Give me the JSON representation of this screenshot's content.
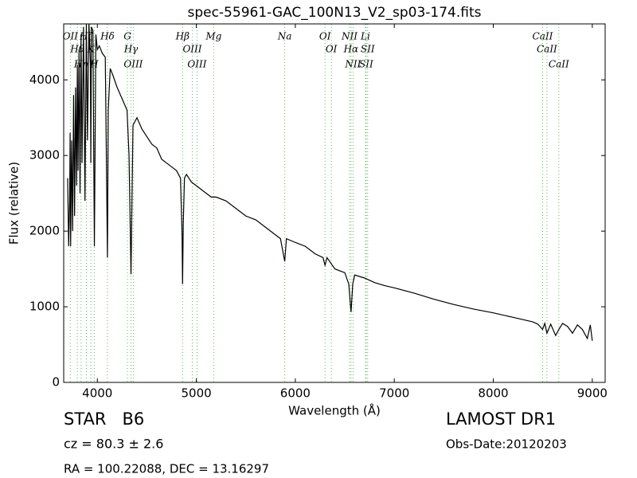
{
  "chart_data": {
    "type": "line",
    "title": "spec-55961-GAC_100N13_V2_sp03-174.fits",
    "x_label": "Wavelength (Å)",
    "y_label": "Flux (relative)",
    "xlim": [
      3660,
      9130
    ],
    "ylim": [
      0,
      4740
    ],
    "xticks": [
      4000,
      5000,
      6000,
      7000,
      8000,
      9000
    ],
    "yticks": [
      0,
      1000,
      2000,
      3000,
      4000
    ],
    "grid": false,
    "series": [
      {
        "color": "#000000",
        "x": [
          3700,
          3710,
          3720,
          3725,
          3730,
          3735,
          3740,
          3750,
          3760,
          3770,
          3780,
          3790,
          3798,
          3805,
          3815,
          3825,
          3835,
          3845,
          3860,
          3875,
          3889,
          3900,
          3915,
          3930,
          3934,
          3940,
          3955,
          3970,
          3985,
          4000,
          4020,
          4050,
          4080,
          4095,
          4102,
          4110,
          4130,
          4160,
          4200,
          4250,
          4300,
          4320,
          4340,
          4360,
          4400,
          4450,
          4500,
          4550,
          4600,
          4650,
          4700,
          4750,
          4800,
          4840,
          4855,
          4861,
          4868,
          4880,
          4900,
          4950,
          5000,
          5050,
          5100,
          5150,
          5200,
          5300,
          5400,
          5500,
          5600,
          5700,
          5800,
          5850,
          5893,
          5910,
          6000,
          6100,
          6200,
          6280,
          6300,
          6320,
          6400,
          6500,
          6540,
          6563,
          6580,
          6600,
          6700,
          6800,
          6900,
          7000,
          7200,
          7400,
          7600,
          7800,
          8000,
          8200,
          8400,
          8450,
          8498,
          8520,
          8542,
          8580,
          8630,
          8662,
          8700,
          8750,
          8800,
          8850,
          8900,
          8950,
          8980,
          9000
        ],
        "values": [
          2700,
          1800,
          2400,
          3300,
          1800,
          2500,
          3200,
          2000,
          3800,
          2200,
          3900,
          2600,
          4200,
          2800,
          4400,
          2500,
          4600,
          2900,
          4700,
          2400,
          4750,
          3200,
          4750,
          4200,
          2900,
          4700,
          4650,
          1800,
          4600,
          4400,
          4450,
          4350,
          4300,
          2500,
          1650,
          3600,
          4150,
          4050,
          3900,
          3750,
          3600,
          3000,
          1430,
          3400,
          3500,
          3350,
          3250,
          3150,
          3100,
          2950,
          2900,
          2850,
          2800,
          2700,
          2000,
          1300,
          2100,
          2700,
          2750,
          2650,
          2600,
          2550,
          2500,
          2450,
          2450,
          2400,
          2300,
          2200,
          2150,
          2050,
          1950,
          1900,
          1600,
          1900,
          1850,
          1800,
          1700,
          1650,
          1550,
          1650,
          1500,
          1450,
          1300,
          930,
          1300,
          1420,
          1380,
          1320,
          1280,
          1250,
          1180,
          1100,
          1030,
          970,
          920,
          860,
          800,
          770,
          700,
          780,
          650,
          770,
          620,
          700,
          780,
          740,
          650,
          760,
          700,
          580,
          760,
          550
        ]
      }
    ],
    "line_marker_color": "#5cb85c",
    "line_markers": [
      {
        "label": "OII",
        "x": 3727
      },
      {
        "label": "Hθ",
        "x": 3798
      },
      {
        "label": "Hη",
        "x": 3835
      },
      {
        "label": "Hζ",
        "x": 3889
      },
      {
        "label": "K",
        "x": 3934
      },
      {
        "label": "H",
        "x": 3969
      },
      {
        "label": "Hδ",
        "x": 4102
      },
      {
        "label": "G",
        "x": 4304
      },
      {
        "label": "Hγ",
        "x": 4340
      },
      {
        "label": "OIII",
        "x": 4363
      },
      {
        "label": "Hβ",
        "x": 4861
      },
      {
        "label": "OIII",
        "x": 4959
      },
      {
        "label": "OIII",
        "x": 5007
      },
      {
        "label": "Mg",
        "x": 5175
      },
      {
        "label": "Na",
        "x": 5893
      },
      {
        "label": "OI",
        "x": 6300
      },
      {
        "label": "OI",
        "x": 6364
      },
      {
        "label": "NII",
        "x": 6548
      },
      {
        "label": "Hα",
        "x": 6563
      },
      {
        "label": "NII",
        "x": 6583
      },
      {
        "label": "Li",
        "x": 6708
      },
      {
        "label": "SII",
        "x": 6716
      },
      {
        "label": "SII",
        "x": 6731
      },
      {
        "label": "CaII",
        "x": 8498
      },
      {
        "label": "CaII",
        "x": 8542
      },
      {
        "label": "CaII",
        "x": 8662
      }
    ]
  },
  "info": {
    "object": "STAR   B6",
    "cz": "cz = 80.3 ± 2.6",
    "coords": "RA = 100.22088, DEC = 13.16297",
    "survey": "LAMOST DR1",
    "obs_date": "Obs-Date:20120203"
  }
}
